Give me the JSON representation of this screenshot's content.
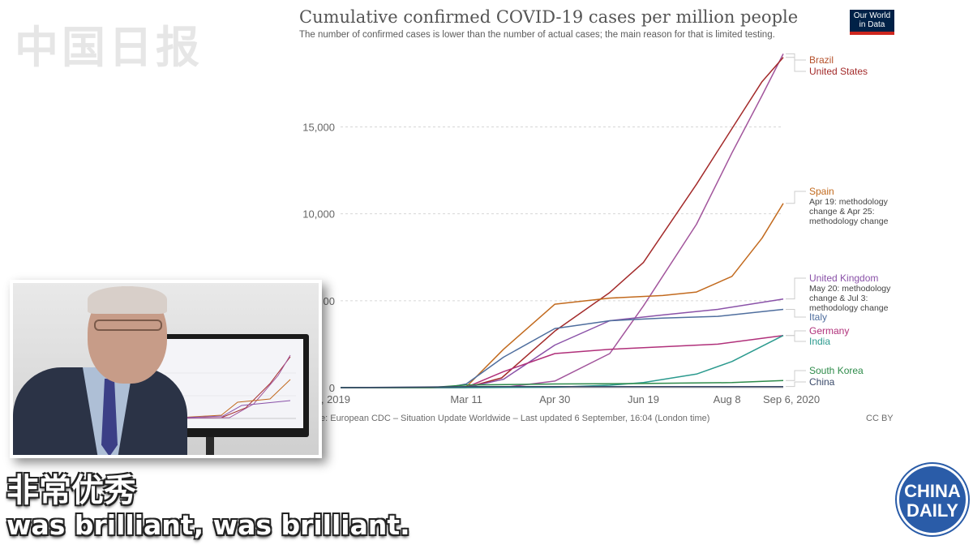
{
  "watermark": "中国日报",
  "chart_header": {
    "title": "Cumulative confirmed COVID-19 cases per million people",
    "subtitle": "The number of confirmed cases is lower than the number of actual cases; the main reason for that is limited testing."
  },
  "owid_logo": {
    "line1": "Our World",
    "line2": "in Data"
  },
  "source": "e: European CDC – Situation Update Worldwide – Last updated 6 September, 16:04 (London time)",
  "license": "CC BY",
  "subtitles": {
    "chinese": "非常优秀",
    "english": "was brilliant, was brilliant."
  },
  "brand_logo": {
    "line1": "CHINA",
    "line2": "DAILY"
  },
  "colors": {
    "owid_navy": "#002147",
    "china_daily_blue": "#2a5ca8"
  },
  "chart_data": {
    "type": "line",
    "title": "Cumulative confirmed COVID-19 cases per million people",
    "x_ticks": [
      "31, 2019",
      "Mar 11",
      "Apr 30",
      "Jun 19",
      "Aug 8",
      "Sep 6, 2020"
    ],
    "x_range": [
      "2019-12-31",
      "2020-09-06"
    ],
    "y_ticks": [
      "0",
      "00",
      "10,000",
      "15,000"
    ],
    "y_range": [
      0,
      19500
    ],
    "grid": "horizontal dotted",
    "series": [
      {
        "name": "Brazil",
        "color": "#a2559c",
        "label_color": "#b5512b",
        "points": [
          [
            "2019-12-31",
            0
          ],
          [
            "2020-03-11",
            0
          ],
          [
            "2020-04-01",
            10
          ],
          [
            "2020-04-30",
            380
          ],
          [
            "2020-05-31",
            1960
          ],
          [
            "2020-06-19",
            4700
          ],
          [
            "2020-07-19",
            9400
          ],
          [
            "2020-08-08",
            13500
          ],
          [
            "2020-08-25",
            16800
          ],
          [
            "2020-09-06",
            19200
          ]
        ]
      },
      {
        "name": "United States",
        "color": "#a32a2a",
        "label_color": "#a32a2a",
        "points": [
          [
            "2019-12-31",
            0
          ],
          [
            "2020-03-01",
            0
          ],
          [
            "2020-03-11",
            5
          ],
          [
            "2020-03-31",
            560
          ],
          [
            "2020-04-30",
            3250
          ],
          [
            "2020-05-31",
            5470
          ],
          [
            "2020-06-19",
            7200
          ],
          [
            "2020-07-19",
            11700
          ],
          [
            "2020-08-08",
            14900
          ],
          [
            "2020-08-25",
            17600
          ],
          [
            "2020-09-06",
            19000
          ]
        ]
      },
      {
        "name": "Spain",
        "color": "#c26a1e",
        "label_color": "#c26a1e",
        "annotation": [
          "Apr 19: methodology",
          "change & Apr 25:",
          "methodology change"
        ],
        "points": [
          [
            "2019-12-31",
            0
          ],
          [
            "2020-03-01",
            0
          ],
          [
            "2020-03-11",
            45
          ],
          [
            "2020-04-01",
            2200
          ],
          [
            "2020-04-30",
            4800
          ],
          [
            "2020-05-31",
            5150
          ],
          [
            "2020-06-30",
            5300
          ],
          [
            "2020-07-19",
            5500
          ],
          [
            "2020-08-08",
            6400
          ],
          [
            "2020-08-25",
            8600
          ],
          [
            "2020-09-06",
            10600
          ]
        ]
      },
      {
        "name": "United Kingdom",
        "color": "#8a52a8",
        "label_color": "#8a52a8",
        "annotation": [
          "May 20: methodology",
          "change & Jul 3:",
          "methodology change"
        ],
        "points": [
          [
            "2019-12-31",
            0
          ],
          [
            "2020-03-01",
            0
          ],
          [
            "2020-03-11",
            6
          ],
          [
            "2020-04-01",
            480
          ],
          [
            "2020-04-30",
            2450
          ],
          [
            "2020-05-31",
            3850
          ],
          [
            "2020-06-30",
            4180
          ],
          [
            "2020-07-31",
            4500
          ],
          [
            "2020-09-06",
            5100
          ]
        ]
      },
      {
        "name": "Italy",
        "color": "#4f6e9e",
        "label_color": "#4f6e9e",
        "points": [
          [
            "2019-12-31",
            0
          ],
          [
            "2020-03-01",
            25
          ],
          [
            "2020-03-11",
            210
          ],
          [
            "2020-04-01",
            1750
          ],
          [
            "2020-04-30",
            3400
          ],
          [
            "2020-05-31",
            3850
          ],
          [
            "2020-06-30",
            4000
          ],
          [
            "2020-07-31",
            4100
          ],
          [
            "2020-09-06",
            4500
          ]
        ]
      },
      {
        "name": "Germany",
        "color": "#b0307a",
        "label_color": "#b0307a",
        "points": [
          [
            "2019-12-31",
            0
          ],
          [
            "2020-03-01",
            3
          ],
          [
            "2020-03-11",
            20
          ],
          [
            "2020-04-01",
            920
          ],
          [
            "2020-04-30",
            1960
          ],
          [
            "2020-05-31",
            2200
          ],
          [
            "2020-06-30",
            2350
          ],
          [
            "2020-07-31",
            2500
          ],
          [
            "2020-09-06",
            3000
          ]
        ]
      },
      {
        "name": "India",
        "color": "#2b9a8e",
        "label_color": "#2b9a8e",
        "points": [
          [
            "2019-12-31",
            0
          ],
          [
            "2020-03-11",
            0
          ],
          [
            "2020-04-30",
            25
          ],
          [
            "2020-05-31",
            140
          ],
          [
            "2020-06-19",
            290
          ],
          [
            "2020-07-19",
            780
          ],
          [
            "2020-08-08",
            1500
          ],
          [
            "2020-09-06",
            3000
          ]
        ]
      },
      {
        "name": "South Korea",
        "color": "#2e8b4a",
        "label_color": "#2e8b4a",
        "points": [
          [
            "2019-12-31",
            0
          ],
          [
            "2020-02-20",
            5
          ],
          [
            "2020-03-11",
            150
          ],
          [
            "2020-04-30",
            210
          ],
          [
            "2020-06-19",
            240
          ],
          [
            "2020-08-08",
            290
          ],
          [
            "2020-09-06",
            410
          ]
        ]
      },
      {
        "name": "China",
        "color": "#3a4a6a",
        "label_color": "#3a4a6a",
        "points": [
          [
            "2019-12-31",
            0
          ],
          [
            "2020-02-10",
            30
          ],
          [
            "2020-03-11",
            56
          ],
          [
            "2020-09-06",
            62
          ]
        ]
      }
    ]
  }
}
